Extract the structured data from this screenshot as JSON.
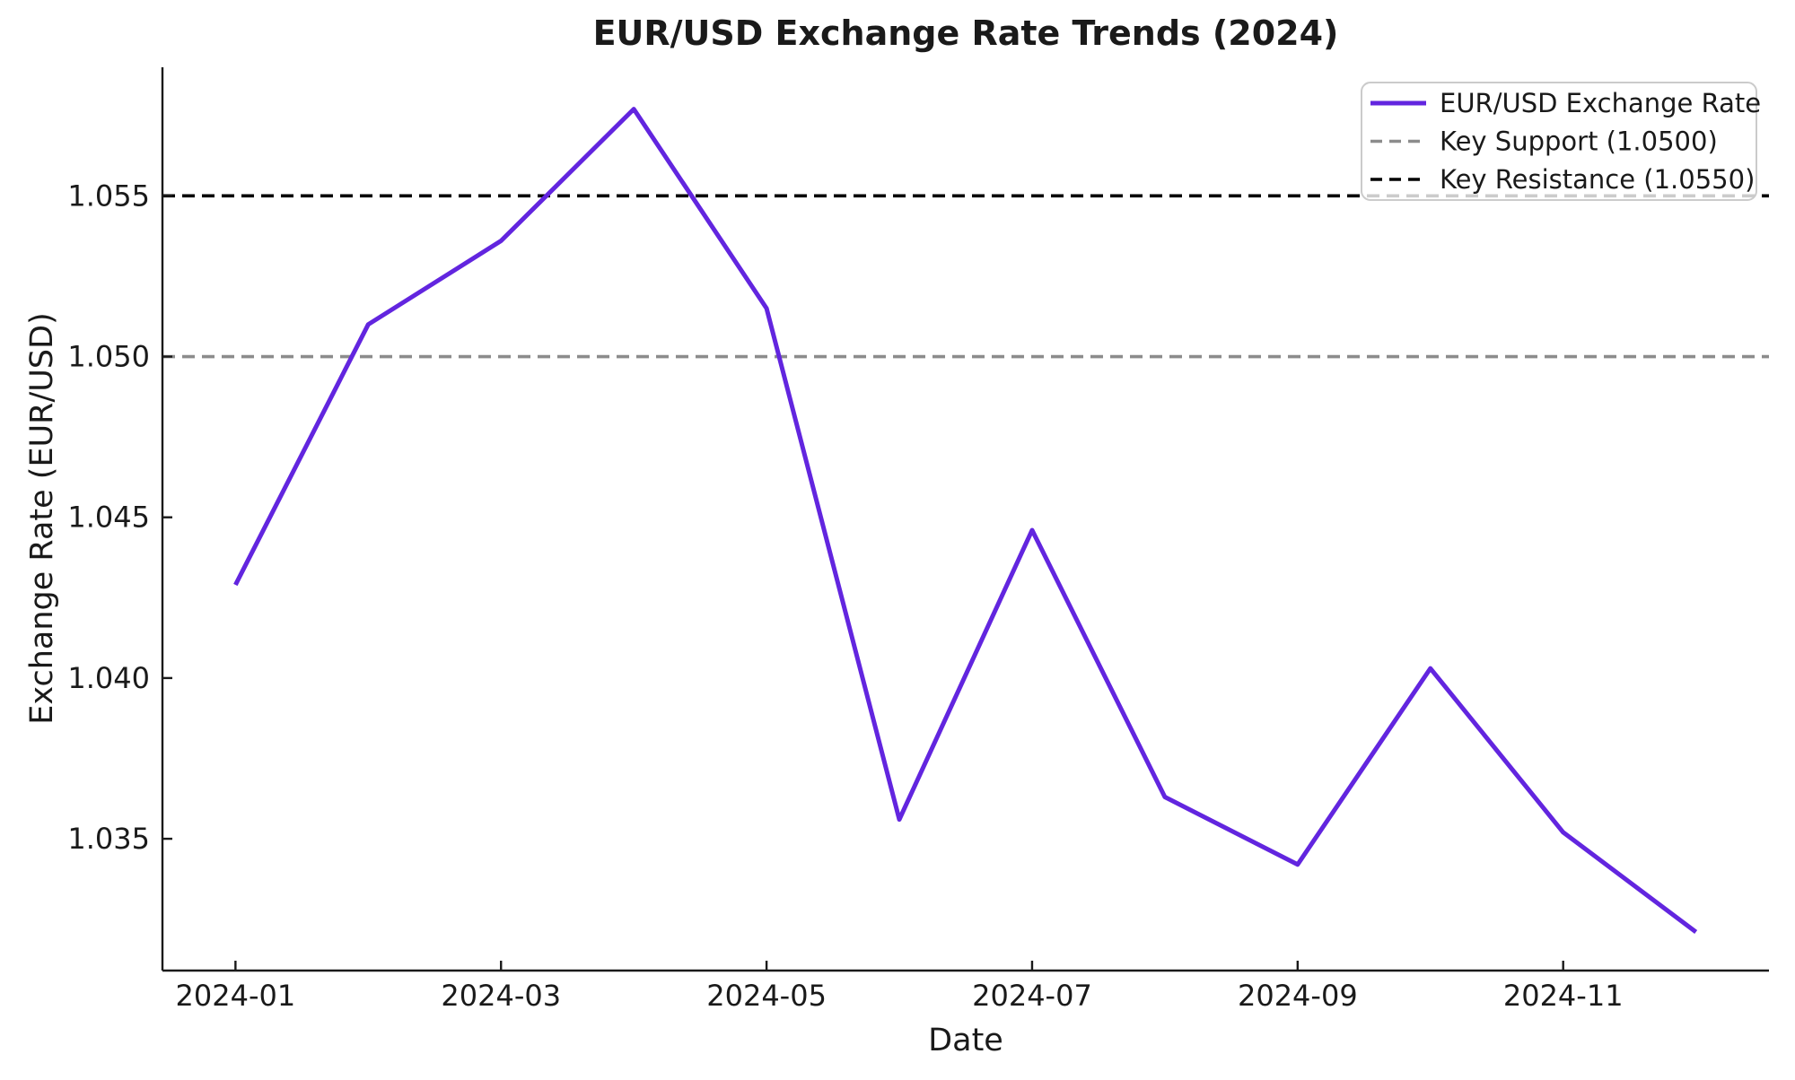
{
  "figure": {
    "title": "EUR/USD Exchange Rate Trends (2024)",
    "legend": {
      "position": "upper right",
      "entries": [
        {
          "label": "EUR/USD Exchange Rate",
          "style": "solid",
          "color": "#6225df"
        },
        {
          "label": "Key Support (1.0500)",
          "style": "dashed",
          "color": "#8c8c8c"
        },
        {
          "label": "Key Resistance (1.0550)",
          "style": "dashed",
          "color": "#000000"
        }
      ]
    }
  },
  "chart_data": {
    "type": "line",
    "title": "EUR/USD Exchange Rate Trends (2024)",
    "xlabel": "Date",
    "ylabel": "Exchange Rate (EUR/USD)",
    "x": [
      "2024-01",
      "2024-02",
      "2024-03",
      "2024-04",
      "2024-05",
      "2024-06",
      "2024-07",
      "2024-08",
      "2024-09",
      "2024-10",
      "2024-11",
      "2024-12"
    ],
    "series": [
      {
        "name": "EUR/USD Exchange Rate",
        "color": "#6225df",
        "values": [
          1.0429,
          1.051,
          1.0536,
          1.0577,
          1.0515,
          1.0356,
          1.0446,
          1.0363,
          1.0342,
          1.0403,
          1.0352,
          1.0321
        ]
      }
    ],
    "reference_lines": [
      {
        "name": "Key Support",
        "label": "Key Support (1.0500)",
        "value": 1.05,
        "color": "#8c8c8c"
      },
      {
        "name": "Key Resistance",
        "label": "Key Resistance (1.0550)",
        "value": 1.055,
        "color": "#000000"
      }
    ],
    "x_tick_labels": [
      "2024-01",
      "2024-03",
      "2024-05",
      "2024-07",
      "2024-09",
      "2024-11"
    ],
    "x_tick_indices": [
      0,
      2,
      4,
      6,
      8,
      10
    ],
    "y_tick_labels": [
      "1.035",
      "1.040",
      "1.045",
      "1.050",
      "1.055"
    ],
    "y_tick_values": [
      1.035,
      1.04,
      1.045,
      1.05,
      1.055
    ],
    "ylim": [
      1.0309,
      1.059
    ],
    "grid": false,
    "legend_position": "upper right"
  }
}
